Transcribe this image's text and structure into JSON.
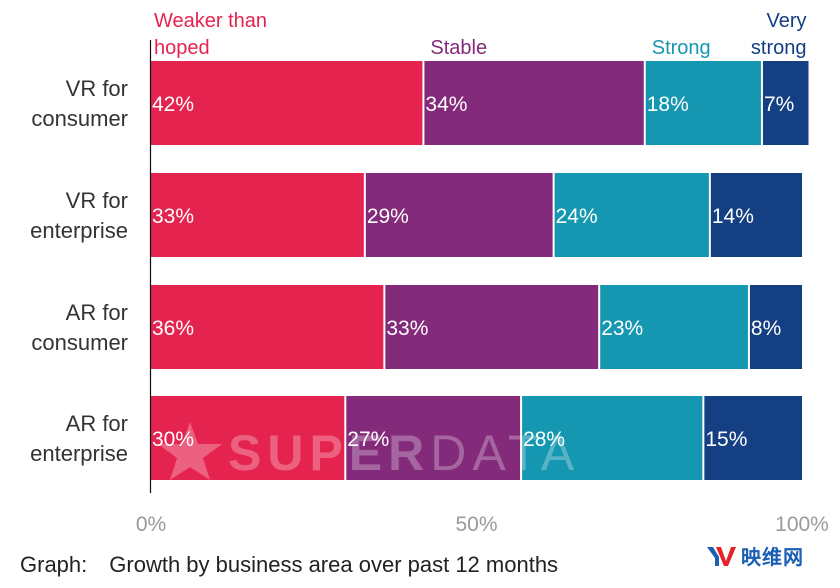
{
  "chart_data": {
    "type": "bar",
    "orientation": "horizontal",
    "stacked": true,
    "title": "",
    "xlabel": "",
    "ylabel": "",
    "xlim": [
      0,
      100
    ],
    "x_ticks": [
      "0%",
      "50%",
      "100%"
    ],
    "grid": false,
    "legend_placement": "top",
    "categories": [
      "VR for consumer",
      "VR for enterprise",
      "AR for consumer",
      "AR for enterprise"
    ],
    "category_lines": [
      [
        "VR for",
        "consumer"
      ],
      [
        "VR for",
        "enterprise"
      ],
      [
        "AR for",
        "consumer"
      ],
      [
        "AR for",
        "enterprise"
      ]
    ],
    "series": [
      {
        "name": "Weaker than hoped",
        "legend_lines": [
          "Weaker than",
          "hoped"
        ],
        "color": "#e5234f",
        "values": [
          42,
          33,
          36,
          30
        ]
      },
      {
        "name": "Stable",
        "legend_lines": [
          "Stable"
        ],
        "color": "#832a7a",
        "values": [
          34,
          29,
          33,
          27
        ]
      },
      {
        "name": "Strong",
        "legend_lines": [
          "Strong"
        ],
        "color": "#1697b1",
        "values": [
          18,
          24,
          23,
          28
        ]
      },
      {
        "name": "Very strong",
        "legend_lines": [
          "Very",
          "strong"
        ],
        "color": "#143f82",
        "values": [
          7,
          14,
          8,
          15
        ]
      }
    ],
    "value_suffix": "%"
  },
  "caption": {
    "prefix": "Graph:",
    "text": "Growth by business area over past 12 months"
  },
  "watermark": {
    "text_bold": "SUPER",
    "text_light": "DATA"
  },
  "logo": {
    "mark": "YV",
    "text": "映维网",
    "colors": {
      "y": "#1a5fb4",
      "v": "#e5232b"
    }
  }
}
